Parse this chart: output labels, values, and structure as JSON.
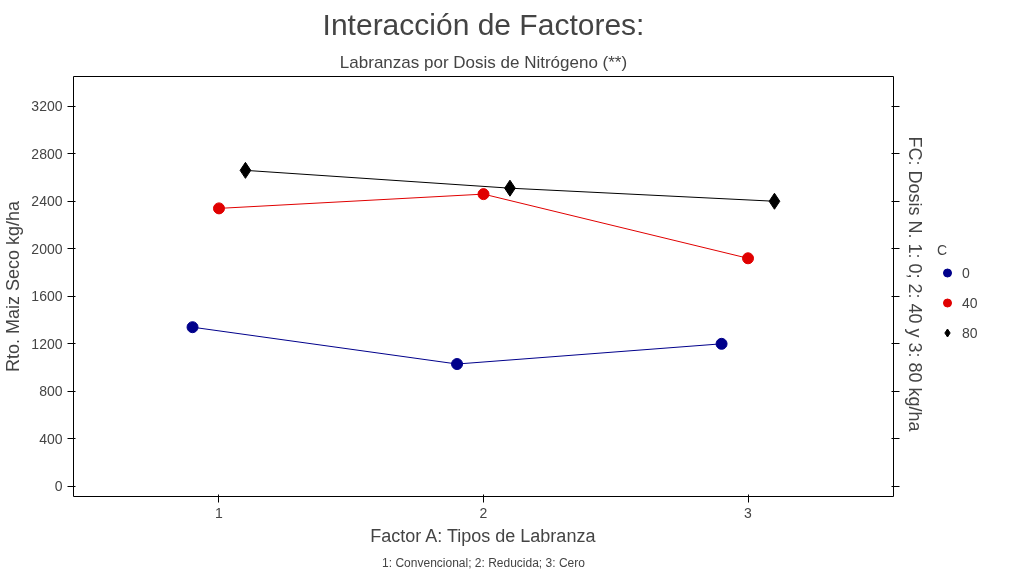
{
  "chart_data": {
    "type": "line",
    "title": "Interacción de Factores:",
    "subtitle": "Labranzas por Dosis de Nitrógeno (**)",
    "xlabel": "Factor A: Tipos de Labranza",
    "ylabel": "Rto. Maiz Seco kg/ha",
    "y2label": "FC: Dosis  N. 1: 0; 2: 40 y 3: 80 kg/ha",
    "legend_title": "C",
    "annotations": [
      "1: Convencional; 2: Reducida; 3: Cero"
    ],
    "xlim": [
      0.45,
      3.55
    ],
    "xticks": [
      1,
      2,
      3
    ],
    "ylim": [
      -85,
      3450
    ],
    "yticks": [
      0,
      400,
      800,
      1200,
      1600,
      2000,
      2400,
      2800,
      3200
    ],
    "grid": false,
    "legend": "right",
    "series": [
      {
        "name": "0",
        "color": "#00008b",
        "marker": "circle",
        "x": [
          0.9,
          1.9,
          2.9
        ],
        "values": [
          1340,
          1030,
          1200
        ]
      },
      {
        "name": "40",
        "color": "#e00000",
        "marker": "circle",
        "x": [
          1.0,
          2.0,
          3.0
        ],
        "values": [
          2340,
          2460,
          1920
        ]
      },
      {
        "name": "80",
        "color": "#000000",
        "marker": "diamond",
        "x": [
          1.1,
          2.1,
          3.1
        ],
        "values": [
          2660,
          2510,
          2400
        ]
      }
    ]
  }
}
